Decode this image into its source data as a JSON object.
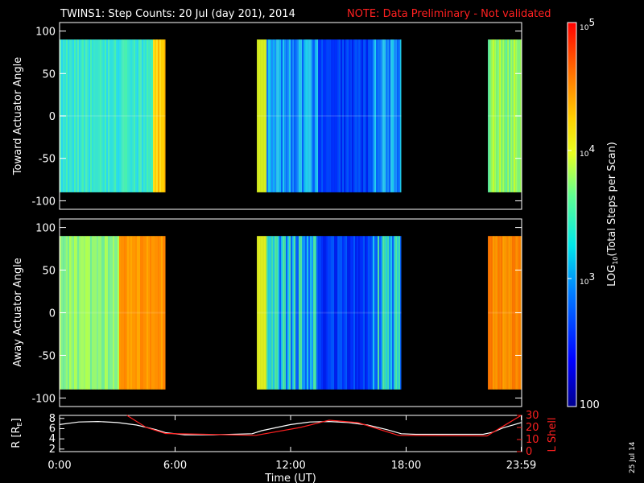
{
  "title": "TWINS1: Step Counts: 20 Jul (day 201), 2014",
  "note": "NOTE: Data Preliminary - Not validated",
  "date_stamp": "25 Jul 14",
  "colors": {
    "note": "#ff2020",
    "r_line": "#ffffff",
    "l_line": "#ff2020",
    "background": "#000000"
  },
  "chart_data": [
    {
      "type": "heatmap",
      "panel": "top",
      "ylabel": "Toward Actuator Angle",
      "ylim": [
        -110,
        110
      ],
      "yticks": [
        100,
        50,
        0,
        -50,
        -100
      ],
      "angle_range": [
        -90,
        90
      ],
      "scale": "log",
      "blocks": [
        {
          "start_hour": 0.0,
          "end_hour": 5.5,
          "level": "cyan-green"
        },
        {
          "start_hour": 10.25,
          "end_hour": 17.75,
          "level": "cyan-blue"
        },
        {
          "start_hour": 22.25,
          "end_hour": 23.98,
          "level": "green-yellow"
        }
      ]
    },
    {
      "type": "heatmap",
      "panel": "middle",
      "ylabel": "Away Actuator Angle",
      "ylim": [
        -110,
        110
      ],
      "yticks": [
        100,
        50,
        0,
        -50,
        -100
      ],
      "angle_range": [
        -90,
        90
      ],
      "scale": "log",
      "blocks": [
        {
          "start_hour": 0.0,
          "end_hour": 5.5,
          "level": "green-orange"
        },
        {
          "start_hour": 10.25,
          "end_hour": 17.75,
          "level": "green-blue"
        },
        {
          "start_hour": 22.25,
          "end_hour": 23.98,
          "level": "orange"
        }
      ]
    },
    {
      "type": "line",
      "panel": "bottom",
      "xlabel": "Time (UT)",
      "xticks": [
        "0:00",
        "6:00",
        "12:00",
        "18:00",
        "23:59"
      ],
      "xtick_hours": [
        0,
        6,
        12,
        18,
        23.98
      ],
      "ylabel_left": "R [R",
      "ylabel_left_sub": "E",
      "ylabel_left_end": "]",
      "yticks_left": [
        2,
        4,
        6,
        8
      ],
      "ylim_left": [
        1.5,
        8.6
      ],
      "ylabel_right": "L Shell",
      "yticks_right": [
        0,
        10,
        20,
        30
      ],
      "ylim_right": [
        0,
        30
      ],
      "series": [
        {
          "axis": "left",
          "x": [
            0,
            1,
            2,
            3,
            4,
            5,
            5.5,
            6.5,
            8,
            10,
            10.5,
            12,
            13,
            14,
            15,
            16,
            17,
            17.75,
            18.5,
            20,
            22,
            22.5,
            23,
            23.98
          ],
          "y": [
            6.8,
            7.3,
            7.4,
            7.2,
            6.7,
            5.8,
            5.2,
            4.8,
            4.8,
            5.0,
            5.6,
            6.8,
            7.3,
            7.4,
            7.2,
            6.7,
            5.8,
            5.0,
            4.9,
            4.9,
            4.9,
            5.3,
            6.1,
            7.2
          ]
        },
        {
          "axis": "right",
          "x": [
            3.5,
            4.5,
            5.5,
            10.2,
            12.5,
            14.0,
            15.5,
            17.6,
            22.2,
            23.98
          ],
          "y": [
            30,
            20,
            15,
            13.5,
            20,
            26,
            24,
            13.5,
            13,
            30
          ]
        }
      ]
    },
    {
      "type": "colorbar",
      "label": "LOG",
      "label_sub": "10",
      "label_end": "(Total Steps per Scan)",
      "ticks": [
        {
          "base": "10",
          "exp": "5"
        },
        {
          "base": "10",
          "exp": "4"
        },
        {
          "base": "10",
          "exp": "3"
        },
        {
          "base": "100",
          "exp": ""
        }
      ],
      "range": [
        100,
        100000
      ]
    }
  ]
}
